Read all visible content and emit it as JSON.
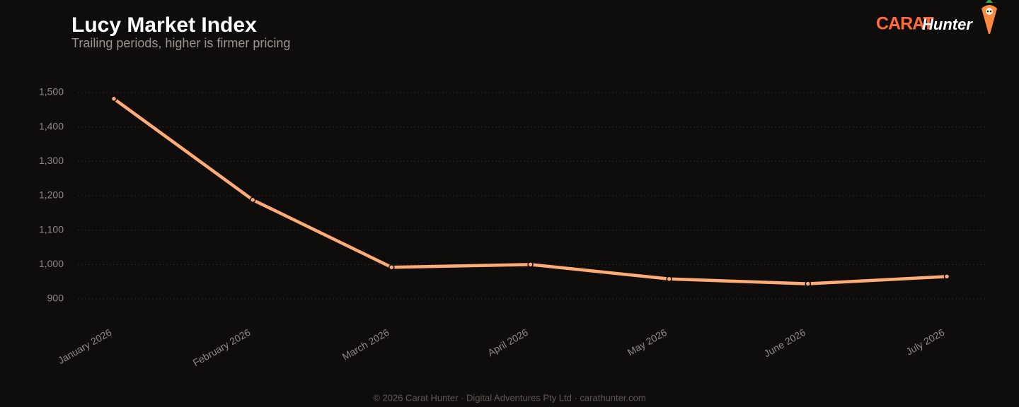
{
  "chart_data": {
    "type": "line",
    "title": "Lucy Market Index",
    "subtitle": "Trailing periods, higher is firmer pricing",
    "categories": [
      "January 2026",
      "February 2026",
      "March 2026",
      "April 2026",
      "May 2026",
      "June 2026",
      "July 2026"
    ],
    "values": [
      1482,
      1188,
      992,
      1000,
      958,
      944,
      965
    ],
    "color": "#ffab76",
    "ylim": [
      900,
      1500
    ],
    "yticks": [
      900,
      {
        "value": 1000,
        "label": "1,000"
      },
      {
        "value": 1100,
        "label": "1,100"
      },
      {
        "value": 1200,
        "label": "1,200"
      },
      {
        "value": 1300,
        "label": "1,300"
      },
      {
        "value": 1400,
        "label": "1,400"
      },
      {
        "value": 1500,
        "label": "1,500"
      }
    ],
    "grid": true
  },
  "brand": {
    "name": "CARAT",
    "suffix": "Hunter"
  },
  "footer": "© 2026 Carat Hunter · Digital Adventures Pty Ltd · carathunter.com"
}
